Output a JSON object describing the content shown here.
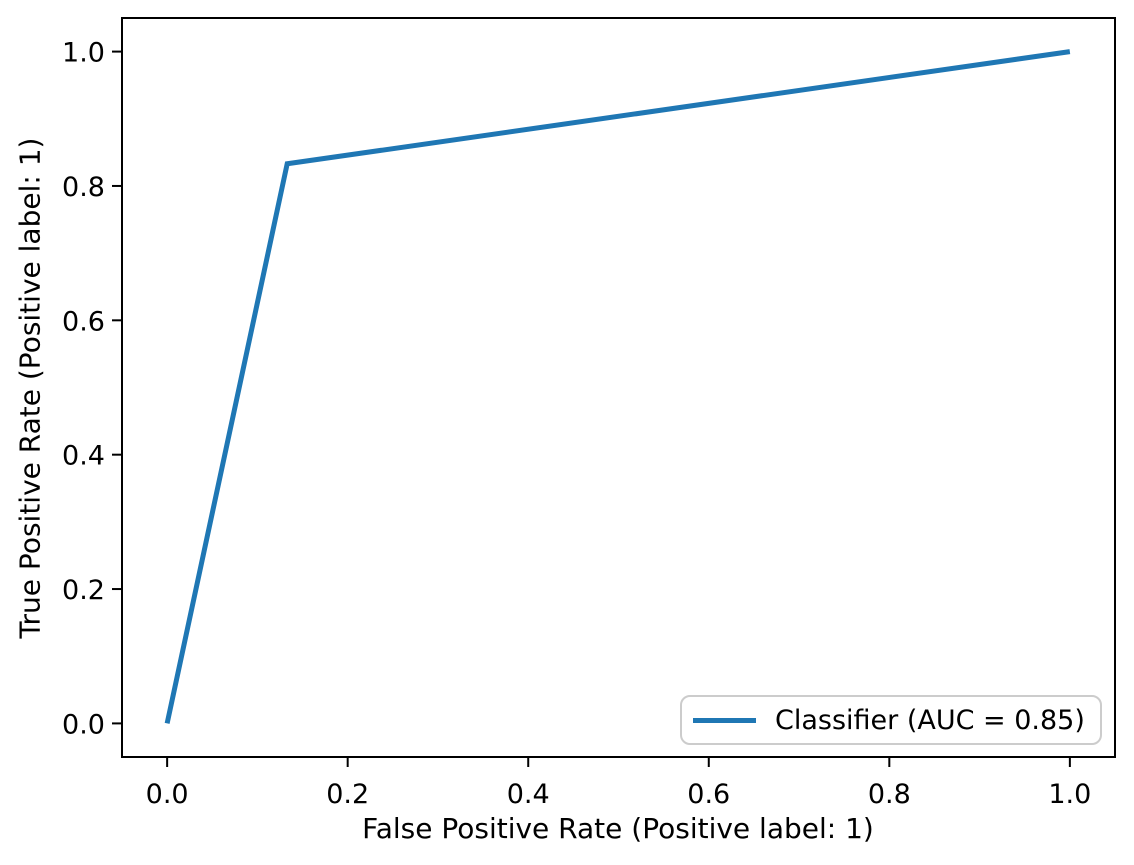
{
  "chart_data": {
    "type": "line",
    "title": "",
    "xlabel": "False Positive Rate (Positive label: 1)",
    "ylabel": "True Positive Rate (Positive label: 1)",
    "xlim": [
      -0.05,
      1.05
    ],
    "ylim": [
      -0.05,
      1.05
    ],
    "x_ticks": [
      0.0,
      0.2,
      0.4,
      0.6,
      0.8,
      1.0
    ],
    "y_ticks": [
      0.0,
      0.2,
      0.4,
      0.6,
      0.8,
      1.0
    ],
    "tick_decimals": 1,
    "grid": false,
    "legend_position": "lower right",
    "axis_color": "#000000",
    "background_color": "#ffffff",
    "legend_border_color": "#cccccc",
    "series": [
      {
        "name": "Classifier (AUC = 0.85)",
        "color": "#1f77b4",
        "x": [
          0.0,
          0.133,
          1.0
        ],
        "y": [
          0.0,
          0.833,
          1.0
        ]
      }
    ]
  }
}
